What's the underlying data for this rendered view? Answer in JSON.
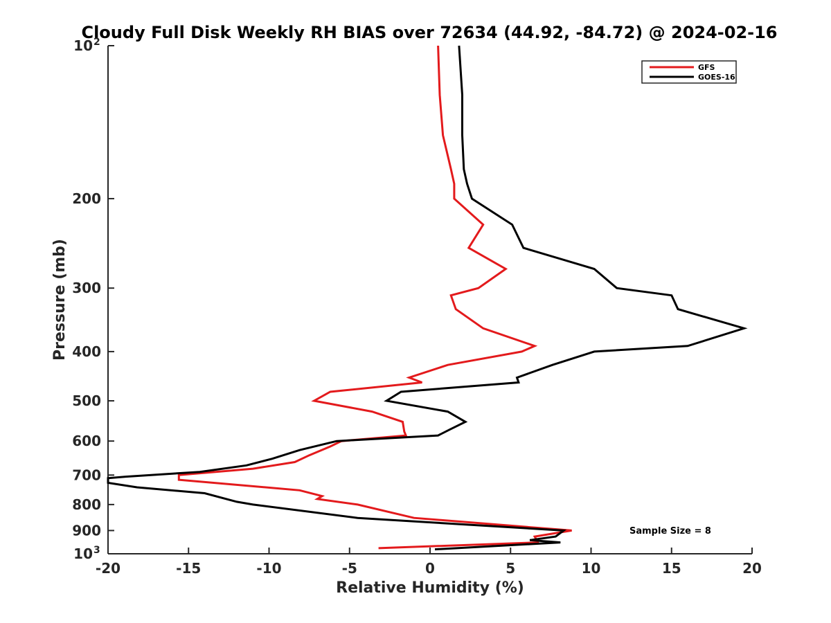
{
  "chart_data": {
    "type": "line",
    "title": "Cloudy Full Disk Weekly RH BIAS over 72634 (44.92, -84.72) @ 2024-02-16",
    "xlabel": "Relative Humidity (%)",
    "ylabel": "Pressure (mb)",
    "xlim": [
      -20,
      20
    ],
    "ylim": [
      100,
      1000
    ],
    "y_scale": "log",
    "y_reversed": true,
    "grid": false,
    "legend_position": "top-right",
    "x_ticks": [
      "-20",
      "-15",
      "-10",
      "-5",
      "0",
      "5",
      "10",
      "15",
      "20"
    ],
    "y_ticks": [
      {
        "value": 100,
        "label": "10",
        "sup": "2"
      },
      {
        "value": 200,
        "label": "200"
      },
      {
        "value": 300,
        "label": "300"
      },
      {
        "value": 400,
        "label": "400"
      },
      {
        "value": 500,
        "label": "500"
      },
      {
        "value": 600,
        "label": "600"
      },
      {
        "value": 700,
        "label": "700"
      },
      {
        "value": 800,
        "label": "800"
      },
      {
        "value": 900,
        "label": "900"
      },
      {
        "value": 1000,
        "label": "10",
        "sup": "3"
      }
    ],
    "annotation": "Sample Size = 8",
    "series": [
      {
        "name": "GFS",
        "color": "#e31a1c",
        "points": [
          [
            0.5,
            100
          ],
          [
            0.6,
            125
          ],
          [
            0.8,
            150
          ],
          [
            1.3,
            175
          ],
          [
            1.5,
            187
          ],
          [
            1.5,
            200
          ],
          [
            3.3,
            225
          ],
          [
            2.4,
            250
          ],
          [
            4.7,
            275
          ],
          [
            3.0,
            300
          ],
          [
            1.3,
            310
          ],
          [
            1.6,
            330
          ],
          [
            3.3,
            360
          ],
          [
            6.5,
            390
          ],
          [
            5.7,
            400
          ],
          [
            1.1,
            425
          ],
          [
            -1.3,
            450
          ],
          [
            -0.5,
            460
          ],
          [
            -6.2,
            480
          ],
          [
            -7.2,
            500
          ],
          [
            -3.6,
            525
          ],
          [
            -1.7,
            550
          ],
          [
            -1.6,
            575
          ],
          [
            -1.5,
            585
          ],
          [
            -5.5,
            600
          ],
          [
            -6.2,
            615
          ],
          [
            -7.5,
            640
          ],
          [
            -8.4,
            660
          ],
          [
            -11.0,
            680
          ],
          [
            -15.6,
            700
          ],
          [
            -15.6,
            715
          ],
          [
            -8.1,
            750
          ],
          [
            -6.7,
            770
          ],
          [
            -7.0,
            780
          ],
          [
            -4.5,
            800
          ],
          [
            -1.0,
            850
          ],
          [
            8.8,
            900
          ],
          [
            6.5,
            925
          ],
          [
            6.7,
            950
          ],
          [
            -3.2,
            975
          ]
        ]
      },
      {
        "name": "GOES-16",
        "color": "#000000",
        "points": [
          [
            1.8,
            100
          ],
          [
            2.0,
            125
          ],
          [
            2.0,
            150
          ],
          [
            2.1,
            175
          ],
          [
            2.3,
            187
          ],
          [
            2.6,
            200
          ],
          [
            5.1,
            225
          ],
          [
            5.8,
            250
          ],
          [
            10.2,
            275
          ],
          [
            11.6,
            300
          ],
          [
            15.0,
            310
          ],
          [
            15.4,
            330
          ],
          [
            19.5,
            360
          ],
          [
            16.0,
            390
          ],
          [
            10.2,
            400
          ],
          [
            7.6,
            425
          ],
          [
            5.4,
            450
          ],
          [
            5.5,
            460
          ],
          [
            -1.8,
            480
          ],
          [
            -2.7,
            500
          ],
          [
            1.1,
            525
          ],
          [
            2.2,
            550
          ],
          [
            1.2,
            570
          ],
          [
            0.5,
            585
          ],
          [
            -5.8,
            600
          ],
          [
            -8.1,
            625
          ],
          [
            -9.8,
            650
          ],
          [
            -11.4,
            670
          ],
          [
            -14.3,
            690
          ],
          [
            -18.9,
            705
          ],
          [
            -20.0,
            710
          ],
          [
            -20.0,
            720
          ],
          [
            -20.0,
            725
          ],
          [
            -18.2,
            740
          ],
          [
            -14.0,
            760
          ],
          [
            -12.0,
            790
          ],
          [
            -11.0,
            800
          ],
          [
            -4.5,
            850
          ],
          [
            8.3,
            900
          ],
          [
            7.8,
            925
          ],
          [
            6.2,
            940
          ],
          [
            8.1,
            950
          ],
          [
            0.3,
            980
          ]
        ]
      }
    ]
  }
}
